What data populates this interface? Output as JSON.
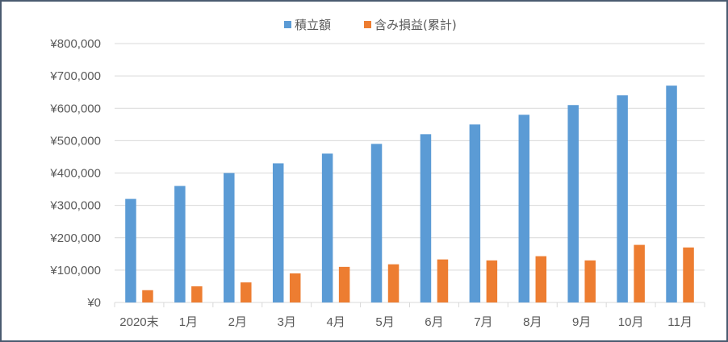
{
  "chart_data": {
    "type": "bar",
    "categories": [
      "2020末",
      "1月",
      "2月",
      "3月",
      "4月",
      "5月",
      "6月",
      "7月",
      "8月",
      "9月",
      "10月",
      "11月"
    ],
    "series": [
      {
        "name": "積立額",
        "color": "#5b9bd5",
        "values": [
          320000,
          360000,
          400000,
          430000,
          460000,
          490000,
          520000,
          550000,
          580000,
          610000,
          640000,
          670000
        ]
      },
      {
        "name": "含み損益(累計)",
        "color": "#ed7d31",
        "values": [
          38000,
          50000,
          62000,
          90000,
          110000,
          118000,
          133000,
          130000,
          143000,
          130000,
          178000,
          170000
        ]
      }
    ],
    "y_ticks": [
      "¥0",
      "¥100,000",
      "¥200,000",
      "¥300,000",
      "¥400,000",
      "¥500,000",
      "¥600,000",
      "¥700,000",
      "¥800,000"
    ],
    "ylim": [
      0,
      800000
    ],
    "grid": true,
    "legend_position": "top-center"
  }
}
